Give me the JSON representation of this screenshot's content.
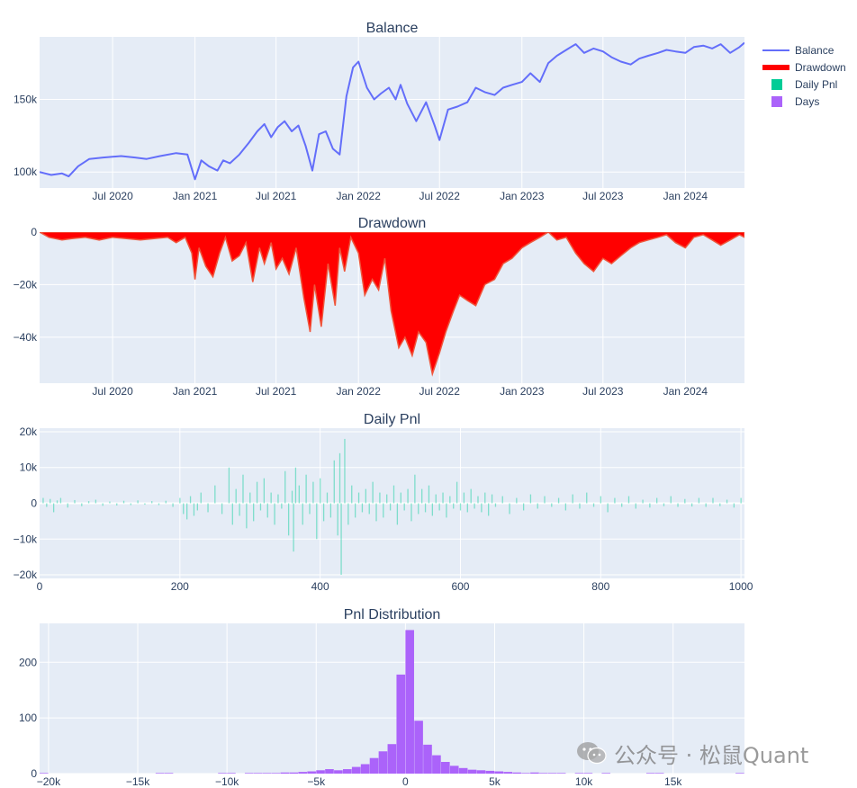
{
  "watermark": {
    "text": "公众号 · 松鼠Quant"
  },
  "legend": [
    {
      "label": "Balance",
      "color": "#636efa",
      "kind": "line"
    },
    {
      "label": "Drawdown",
      "color": "#ff0000",
      "kind": "thick-line"
    },
    {
      "label": "Daily Pnl",
      "color": "#00cc96",
      "kind": "box"
    },
    {
      "label": "Days",
      "color": "#ab63fa",
      "kind": "box"
    }
  ],
  "chart_data": [
    {
      "type": "line",
      "title": "Balance",
      "color": "#636efa",
      "x_type": "date",
      "xlim": [
        "2020-01-20",
        "2024-05-12"
      ],
      "x_ticks": [
        {
          "value": "2020-07-01",
          "label": "Jul 2020"
        },
        {
          "value": "2021-01-01",
          "label": "Jan 2021"
        },
        {
          "value": "2021-07-01",
          "label": "Jul 2021"
        },
        {
          "value": "2022-01-01",
          "label": "Jan 2022"
        },
        {
          "value": "2022-07-01",
          "label": "Jul 2022"
        },
        {
          "value": "2023-01-01",
          "label": "Jan 2023"
        },
        {
          "value": "2023-07-01",
          "label": "Jul 2023"
        },
        {
          "value": "2024-01-01",
          "label": "Jan 2024"
        }
      ],
      "ylim": [
        89000,
        193000
      ],
      "y_ticks": [
        {
          "value": 100000,
          "label": "100k"
        },
        {
          "value": 150000,
          "label": "150k"
        }
      ],
      "x": [
        "2020-01-20",
        "2020-02-15",
        "2020-03-10",
        "2020-03-25",
        "2020-04-15",
        "2020-05-10",
        "2020-06-10",
        "2020-07-20",
        "2020-08-20",
        "2020-09-15",
        "2020-10-15",
        "2020-11-20",
        "2020-12-15",
        "2021-01-01",
        "2021-01-15",
        "2021-02-01",
        "2021-02-20",
        "2021-03-05",
        "2021-03-20",
        "2021-04-10",
        "2021-05-01",
        "2021-05-20",
        "2021-06-05",
        "2021-06-20",
        "2021-07-05",
        "2021-07-20",
        "2021-08-05",
        "2021-08-20",
        "2021-09-05",
        "2021-09-20",
        "2021-10-05",
        "2021-10-20",
        "2021-11-05",
        "2021-11-20",
        "2021-12-05",
        "2021-12-20",
        "2022-01-01",
        "2022-01-20",
        "2022-02-05",
        "2022-02-20",
        "2022-03-10",
        "2022-03-25",
        "2022-04-05",
        "2022-04-20",
        "2022-05-10",
        "2022-06-01",
        "2022-06-20",
        "2022-07-01",
        "2022-07-20",
        "2022-08-10",
        "2022-09-01",
        "2022-09-20",
        "2022-10-10",
        "2022-11-01",
        "2022-11-20",
        "2022-12-10",
        "2023-01-01",
        "2023-01-20",
        "2023-02-10",
        "2023-03-01",
        "2023-03-20",
        "2023-04-10",
        "2023-05-01",
        "2023-05-20",
        "2023-06-10",
        "2023-07-01",
        "2023-07-20",
        "2023-08-10",
        "2023-09-01",
        "2023-09-20",
        "2023-10-10",
        "2023-11-01",
        "2023-11-20",
        "2023-12-10",
        "2024-01-01",
        "2024-01-20",
        "2024-02-10",
        "2024-03-01",
        "2024-03-20",
        "2024-04-10",
        "2024-05-01",
        "2024-05-12"
      ],
      "y": [
        100000,
        98000,
        99000,
        97000,
        104000,
        109000,
        110000,
        111000,
        110000,
        109000,
        111000,
        113000,
        112000,
        95000,
        108000,
        104000,
        101000,
        108000,
        106000,
        112000,
        120000,
        128000,
        133000,
        124000,
        131000,
        135000,
        128000,
        132000,
        118000,
        101000,
        126000,
        128000,
        116000,
        112000,
        152000,
        172000,
        176000,
        158000,
        150000,
        154000,
        158000,
        150000,
        160000,
        147000,
        135000,
        148000,
        132000,
        122000,
        143000,
        145000,
        148000,
        158000,
        155000,
        153000,
        158000,
        160000,
        162000,
        168000,
        162000,
        175000,
        180000,
        184000,
        188000,
        182000,
        185000,
        183000,
        179000,
        176000,
        174000,
        178000,
        180000,
        182000,
        184000,
        183000,
        182000,
        186000,
        187000,
        185000,
        188000,
        182000,
        186000,
        189000
      ]
    },
    {
      "type": "area",
      "title": "Drawdown",
      "color": "#ff0000",
      "x_type": "date",
      "xlim": [
        "2020-01-20",
        "2024-05-12"
      ],
      "x_ticks": [
        {
          "value": "2020-07-01",
          "label": "Jul 2020"
        },
        {
          "value": "2021-01-01",
          "label": "Jan 2021"
        },
        {
          "value": "2021-07-01",
          "label": "Jul 2021"
        },
        {
          "value": "2022-01-01",
          "label": "Jan 2022"
        },
        {
          "value": "2022-07-01",
          "label": "Jul 2022"
        },
        {
          "value": "2023-01-01",
          "label": "Jan 2023"
        },
        {
          "value": "2023-07-01",
          "label": "Jul 2023"
        },
        {
          "value": "2024-01-01",
          "label": "Jan 2024"
        }
      ],
      "ylim": [
        -57500,
        0
      ],
      "y_ticks": [
        {
          "value": 0,
          "label": "0"
        },
        {
          "value": -20000,
          "label": "−20k"
        },
        {
          "value": -40000,
          "label": "−40k"
        }
      ],
      "x": [
        "2020-01-20",
        "2020-02-10",
        "2020-03-10",
        "2020-04-01",
        "2020-05-01",
        "2020-06-01",
        "2020-07-01",
        "2020-08-01",
        "2020-09-01",
        "2020-10-01",
        "2020-11-01",
        "2020-11-20",
        "2020-12-10",
        "2020-12-25",
        "2021-01-01",
        "2021-01-10",
        "2021-01-25",
        "2021-02-10",
        "2021-02-25",
        "2021-03-10",
        "2021-03-25",
        "2021-04-10",
        "2021-04-25",
        "2021-05-10",
        "2021-05-25",
        "2021-06-05",
        "2021-06-20",
        "2021-07-01",
        "2021-07-15",
        "2021-07-30",
        "2021-08-15",
        "2021-09-01",
        "2021-09-15",
        "2021-09-25",
        "2021-10-10",
        "2021-10-25",
        "2021-11-10",
        "2021-11-20",
        "2021-12-01",
        "2021-12-15",
        "2022-01-01",
        "2022-01-15",
        "2022-02-01",
        "2022-02-15",
        "2022-03-01",
        "2022-03-15",
        "2022-04-01",
        "2022-04-15",
        "2022-05-01",
        "2022-05-15",
        "2022-06-01",
        "2022-06-15",
        "2022-07-01",
        "2022-07-15",
        "2022-08-01",
        "2022-08-15",
        "2022-09-01",
        "2022-09-20",
        "2022-10-10",
        "2022-11-01",
        "2022-11-20",
        "2022-12-10",
        "2023-01-01",
        "2023-01-20",
        "2023-02-10",
        "2023-03-01",
        "2023-03-20",
        "2023-04-10",
        "2023-05-01",
        "2023-05-20",
        "2023-06-10",
        "2023-07-01",
        "2023-07-20",
        "2023-08-10",
        "2023-09-01",
        "2023-09-20",
        "2023-10-10",
        "2023-11-01",
        "2023-11-20",
        "2023-12-10",
        "2024-01-01",
        "2024-01-20",
        "2024-02-10",
        "2024-03-01",
        "2024-03-20",
        "2024-04-10",
        "2024-05-01",
        "2024-05-12"
      ],
      "y": [
        0,
        -2000,
        -3000,
        -2500,
        -2000,
        -3000,
        -2000,
        -2500,
        -3000,
        -2500,
        -2000,
        -4000,
        -2000,
        -8000,
        -18000,
        -6000,
        -13000,
        -17000,
        -8000,
        -2000,
        -11000,
        -9000,
        -4000,
        -19000,
        -6000,
        -12000,
        -4000,
        -14000,
        -10000,
        -16000,
        -6000,
        -25000,
        -38000,
        -20000,
        -36000,
        -12000,
        -28000,
        -6000,
        -15000,
        -2000,
        -8000,
        -24000,
        -18000,
        -22000,
        -10000,
        -30000,
        -44000,
        -40000,
        -47000,
        -38000,
        -42000,
        -54000,
        -46000,
        -38000,
        -30000,
        -24000,
        -26000,
        -28000,
        -20000,
        -18000,
        -12000,
        -10000,
        -6000,
        -4000,
        -2000,
        0,
        -3000,
        -2000,
        -8000,
        -12000,
        -15000,
        -10000,
        -12000,
        -9000,
        -6000,
        -4000,
        -3000,
        -2000,
        -1000,
        -4000,
        -6000,
        -2000,
        -1000,
        -3000,
        -5000,
        -3000,
        -1000,
        -2000
      ]
    },
    {
      "type": "bar",
      "title": "Daily Pnl",
      "color": "#00cc96",
      "xlim": [
        0,
        1005
      ],
      "x_ticks": [
        {
          "value": 0,
          "label": "0"
        },
        {
          "value": 200,
          "label": "200"
        },
        {
          "value": 400,
          "label": "400"
        },
        {
          "value": 600,
          "label": "600"
        },
        {
          "value": 800,
          "label": "800"
        },
        {
          "value": 1000,
          "label": "1000"
        }
      ],
      "ylim": [
        -21000,
        21000
      ],
      "y_ticks": [
        {
          "value": 20000,
          "label": "20k"
        },
        {
          "value": 10000,
          "label": "10k"
        },
        {
          "value": 0,
          "label": "0"
        },
        {
          "value": -10000,
          "label": "−10k"
        },
        {
          "value": -20000,
          "label": "−20k"
        }
      ],
      "x": [
        5,
        10,
        15,
        20,
        25,
        30,
        40,
        50,
        60,
        70,
        80,
        90,
        100,
        110,
        120,
        130,
        140,
        150,
        160,
        170,
        180,
        190,
        200,
        205,
        210,
        215,
        220,
        225,
        230,
        240,
        250,
        260,
        270,
        275,
        280,
        285,
        290,
        295,
        300,
        305,
        310,
        315,
        320,
        325,
        330,
        335,
        340,
        345,
        350,
        355,
        360,
        362,
        365,
        370,
        375,
        380,
        385,
        390,
        395,
        400,
        405,
        410,
        415,
        420,
        425,
        428,
        430,
        435,
        440,
        445,
        450,
        455,
        460,
        465,
        470,
        475,
        480,
        485,
        490,
        495,
        500,
        505,
        510,
        515,
        520,
        525,
        530,
        535,
        540,
        545,
        550,
        555,
        560,
        565,
        570,
        575,
        580,
        585,
        590,
        595,
        600,
        605,
        610,
        615,
        620,
        625,
        630,
        635,
        640,
        645,
        650,
        660,
        670,
        680,
        690,
        700,
        710,
        720,
        730,
        740,
        750,
        760,
        770,
        780,
        790,
        800,
        810,
        820,
        830,
        840,
        850,
        860,
        870,
        880,
        890,
        900,
        910,
        920,
        930,
        940,
        950,
        960,
        970,
        980,
        990,
        1000
      ],
      "values": [
        1500,
        -1000,
        1200,
        -2500,
        800,
        1500,
        -1200,
        900,
        -800,
        600,
        1000,
        -700,
        500,
        -600,
        700,
        -500,
        800,
        -400,
        600,
        -500,
        700,
        -1000,
        1500,
        -3000,
        -4500,
        2000,
        -3500,
        -2000,
        3000,
        -2500,
        5000,
        -3000,
        10000,
        -6000,
        4000,
        -3500,
        8000,
        -7000,
        3000,
        -5000,
        6000,
        -2000,
        7000,
        -4000,
        3000,
        -6000,
        2500,
        -1500,
        9000,
        -9000,
        3500,
        -13500,
        10000,
        5000,
        -6000,
        8000,
        -3000,
        6000,
        -10000,
        7000,
        -5000,
        3000,
        -4000,
        12000,
        -9000,
        14000,
        -20000,
        18000,
        -6000,
        5000,
        -4000,
        3000,
        -2500,
        4000,
        -3000,
        6000,
        -5000,
        3000,
        -4000,
        2500,
        -2000,
        5000,
        -6000,
        3000,
        -2000,
        4000,
        -5000,
        8000,
        -3000,
        4000,
        -2500,
        5000,
        -3500,
        2500,
        -2000,
        3000,
        -4000,
        2000,
        -1500,
        6000,
        -2000,
        3000,
        -2500,
        4000,
        -1500,
        2000,
        -2500,
        3000,
        -3500,
        2500,
        -1000,
        2000,
        -3000,
        1500,
        -2000,
        2500,
        -1500,
        2000,
        -1000,
        1500,
        -2000,
        2500,
        -1500,
        3000,
        -1000,
        2000,
        -2500,
        1500,
        -1000,
        2000,
        -1500,
        1000,
        -1200,
        1500,
        -800,
        2000,
        -1000,
        1200,
        -900,
        1500,
        -1000,
        1500,
        -800,
        1000,
        -1200,
        1500
      ]
    },
    {
      "type": "bar",
      "title": "Pnl Distribution",
      "color": "#ab63fa",
      "xlim": [
        -20500,
        19000
      ],
      "x_ticks": [
        {
          "value": -20000,
          "label": "−20k"
        },
        {
          "value": -15000,
          "label": "−15k"
        },
        {
          "value": -10000,
          "label": "−10k"
        },
        {
          "value": -5000,
          "label": "−5k"
        },
        {
          "value": 0,
          "label": "0"
        },
        {
          "value": 5000,
          "label": "5k"
        },
        {
          "value": 10000,
          "label": "10k"
        },
        {
          "value": 15000,
          "label": "15k"
        }
      ],
      "ylim": [
        0,
        270
      ],
      "y_ticks": [
        {
          "value": 0,
          "label": "0"
        },
        {
          "value": 100,
          "label": "100"
        },
        {
          "value": 200,
          "label": "200"
        }
      ],
      "bin_width": 500,
      "x": [
        -20250,
        -13750,
        -13250,
        -10250,
        -9750,
        -8750,
        -8250,
        -7750,
        -7250,
        -6750,
        -6250,
        -5750,
        -5250,
        -4750,
        -4250,
        -3750,
        -3250,
        -2750,
        -2250,
        -1750,
        -1250,
        -750,
        -250,
        250,
        750,
        1250,
        1750,
        2250,
        2750,
        3250,
        3750,
        4250,
        4750,
        5250,
        5750,
        6250,
        6750,
        7250,
        7750,
        8250,
        8750,
        9750,
        10250,
        11250,
        13750,
        14250,
        18750
      ],
      "values": [
        1,
        1,
        1,
        1,
        1,
        1,
        1,
        1,
        1,
        2,
        2,
        3,
        4,
        6,
        8,
        6,
        8,
        12,
        17,
        28,
        40,
        53,
        178,
        258,
        95,
        52,
        33,
        21,
        14,
        10,
        7,
        6,
        5,
        4,
        3,
        2,
        1,
        2,
        1,
        1,
        1,
        1,
        1,
        1,
        1,
        1,
        1
      ]
    }
  ]
}
